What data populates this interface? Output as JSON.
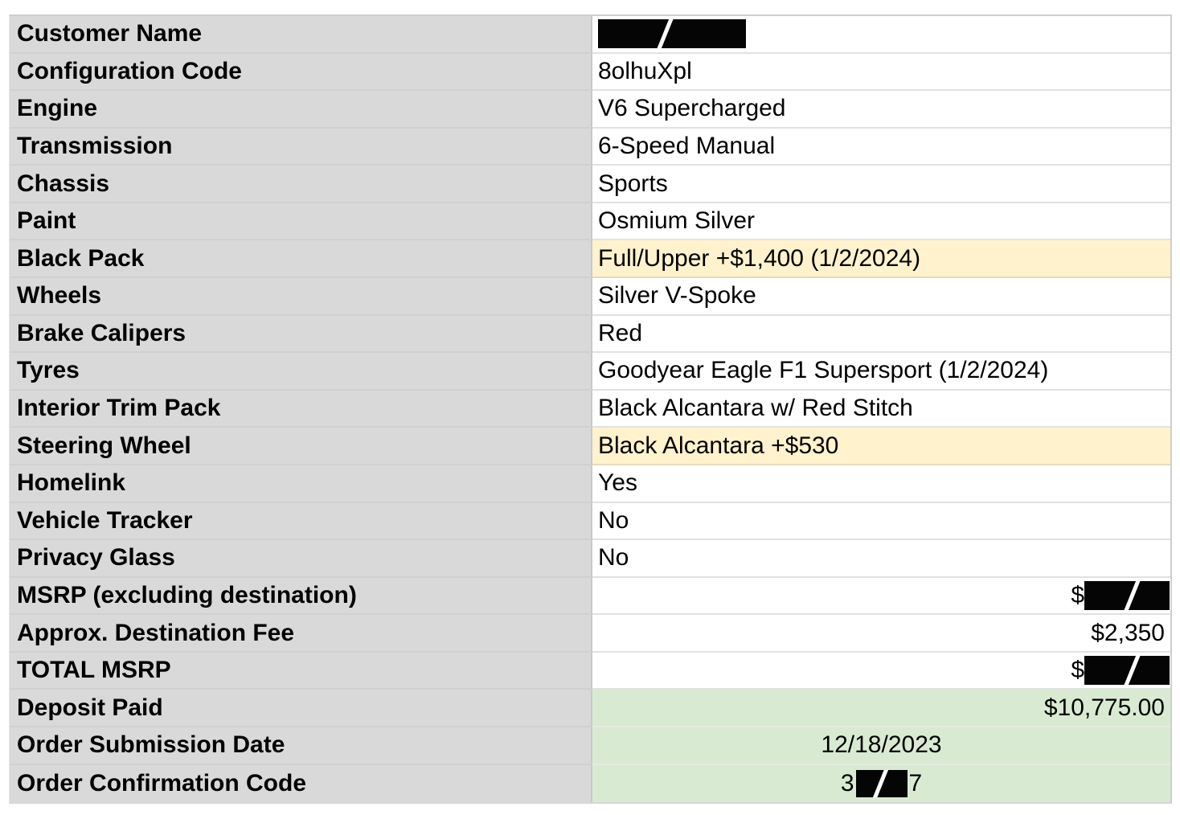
{
  "sheet": {
    "colors": {
      "label_bg": "#d9d9d9",
      "highlight_yellow": "#fff2cc",
      "highlight_green": "#d9ead3",
      "redaction": "#000000"
    },
    "rows": [
      {
        "label": "Customer Name",
        "value_redacted": true
      },
      {
        "label": "Configuration Code",
        "value": "8olhuXpl"
      },
      {
        "label": "Engine",
        "value": "V6 Supercharged"
      },
      {
        "label": "Transmission",
        "value": "6-Speed Manual"
      },
      {
        "label": "Chassis",
        "value": "Sports"
      },
      {
        "label": "Paint",
        "value": "Osmium Silver"
      },
      {
        "label": "Black Pack",
        "value": "Full/Upper +$1,400 (1/2/2024)",
        "highlight": "yellow"
      },
      {
        "label": "Wheels",
        "value": "Silver V-Spoke"
      },
      {
        "label": "Brake Calipers",
        "value": "Red"
      },
      {
        "label": "Tyres",
        "value": "Goodyear Eagle F1 Supersport (1/2/2024)"
      },
      {
        "label": "Interior Trim Pack",
        "value": "Black Alcantara w/ Red Stitch"
      },
      {
        "label": "Steering Wheel",
        "value": "Black Alcantara +$530",
        "highlight": "yellow"
      },
      {
        "label": "Homelink",
        "value": "Yes"
      },
      {
        "label": "Vehicle Tracker",
        "value": "No"
      },
      {
        "label": "Privacy Glass",
        "value": "No"
      },
      {
        "label": "MSRP (excluding destination)",
        "value_prefix": "$",
        "value_redacted": true,
        "align": "right"
      },
      {
        "label": "Approx. Destination Fee",
        "value": "$2,350",
        "align": "right"
      },
      {
        "label": "TOTAL MSRP",
        "value_prefix": "$",
        "value_redacted": true,
        "align": "right"
      },
      {
        "label": "Deposit Paid",
        "value": "$10,775.00",
        "highlight": "green",
        "align": "right"
      },
      {
        "label": "Order Submission Date",
        "value": "12/18/2023",
        "highlight": "green",
        "align": "center"
      },
      {
        "label": "Order Confirmation Code",
        "value_prefix": "3",
        "value_suffix": "7",
        "value_redacted": true,
        "highlight": "green",
        "align": "center"
      }
    ]
  }
}
